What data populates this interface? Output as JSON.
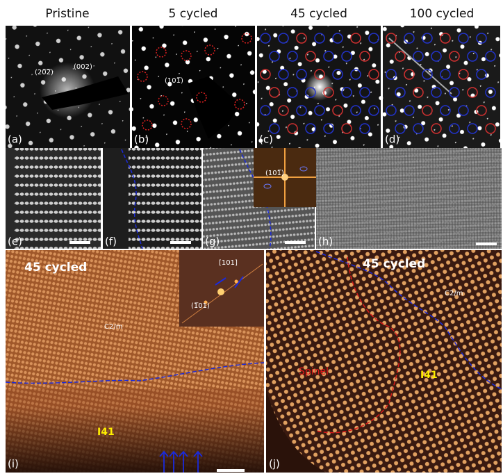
{
  "column_titles": [
    "Pristine",
    "5 cycled",
    "45 cycled",
    "100 cycled"
  ],
  "panels": {
    "a": {
      "label": "(a)",
      "annotations": [
        "(20̅2̅)",
        "(002)"
      ]
    },
    "b": {
      "label": "(b)",
      "annotations": [
        "(101̅)"
      ]
    },
    "c": {
      "label": "(c)"
    },
    "d": {
      "label": "(d)"
    },
    "e": {
      "label": "(e)"
    },
    "f": {
      "label": "(f)"
    },
    "g": {
      "label": "(g)",
      "annotations": [
        "(101̅)"
      ]
    },
    "h": {
      "label": "(h)"
    },
    "i": {
      "label": "(i)",
      "title": "45 cycled",
      "annotations": [
        "[101]",
        "(1̅01)",
        "C2/m",
        "I41"
      ]
    },
    "j": {
      "label": "(j)",
      "title": "45 cycled",
      "annotations": [
        "C2/m",
        "Spinel",
        "I41"
      ]
    }
  }
}
